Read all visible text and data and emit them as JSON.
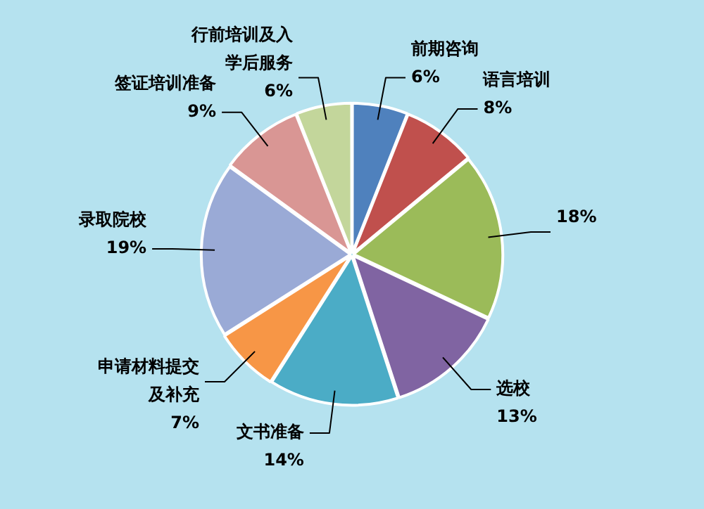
{
  "chart_data": {
    "type": "pie",
    "categories": [
      "前期咨询",
      "语言培训",
      null,
      "选校",
      "文书准备",
      "申请材料提交及补充",
      "录取院校",
      "签证培训准备",
      "行前培训及入学后服务"
    ],
    "values": [
      6,
      8,
      18,
      13,
      14,
      7,
      19,
      9,
      6
    ],
    "colors": [
      "#4f81bd",
      "#c0504d",
      "#9bbb59",
      "#8064a2",
      "#4bacc6",
      "#f79646",
      "#9aaad6",
      "#d99694",
      "#c3d69b"
    ],
    "value_labels": [
      "6%",
      "8%",
      "18%",
      "13%",
      "14%",
      "7%",
      "19%",
      "9%",
      "6%"
    ],
    "legend": false
  }
}
